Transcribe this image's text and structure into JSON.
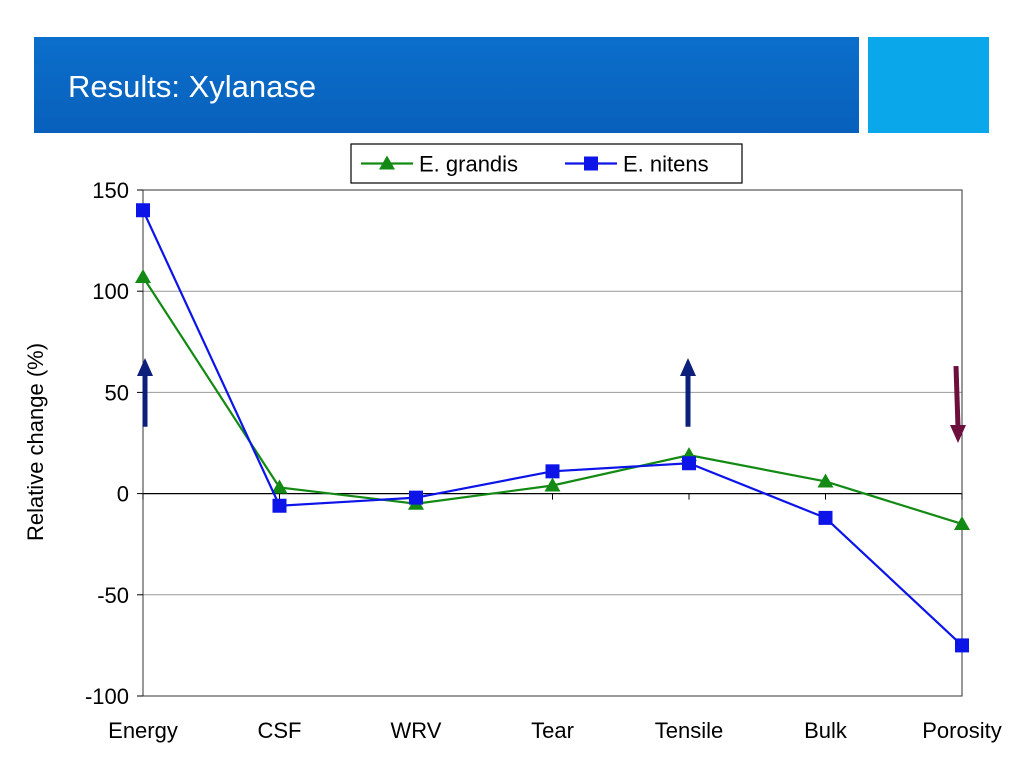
{
  "slide": {
    "title": "Results: Xylanase"
  },
  "colors": {
    "title_bar": "#0a68c4",
    "title_accent": "#0aa7ea",
    "grandis": "#138a13",
    "nitens": "#0c14e8",
    "arrow_up": "#0c1f7a",
    "arrow_down": "#6d0f3c"
  },
  "chart_data": {
    "type": "line",
    "categories": [
      "Energy",
      "CSF",
      "WRV",
      "Tear",
      "Tensile",
      "Bulk",
      "Porosity"
    ],
    "ylabel": "Relative change (%)",
    "xlabel": "",
    "ylim": [
      -100,
      150
    ],
    "yticks": [
      -100,
      -50,
      0,
      50,
      100,
      150
    ],
    "grid": true,
    "legend_position": "top-center",
    "series": [
      {
        "name": "E. grandis",
        "marker": "triangle",
        "values": [
          107,
          3,
          -5,
          4,
          19,
          6,
          -15
        ]
      },
      {
        "name": "E. nitens",
        "marker": "square",
        "values": [
          140,
          -6,
          -2,
          11,
          15,
          -12,
          -75
        ]
      }
    ],
    "annotations": [
      {
        "type": "arrow",
        "direction": "up",
        "category": "Energy",
        "from": 33,
        "to": 67
      },
      {
        "type": "arrow",
        "direction": "up",
        "category": "Tensile",
        "from": 33,
        "to": 67
      },
      {
        "type": "arrow",
        "direction": "down",
        "category": "Porosity",
        "from": 63,
        "to": 25
      }
    ]
  }
}
